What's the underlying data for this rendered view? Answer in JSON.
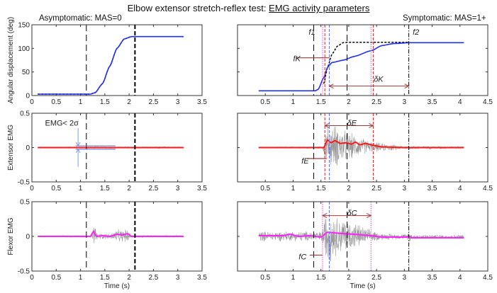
{
  "figure": {
    "title_plain": "Elbow extensor stretch-reflex test: ",
    "title_underlined": "EMG activity parameters",
    "left_subtitle": "Asymptomatic: MAS=0",
    "right_subtitle": "Symptomatic: MAS=1+"
  },
  "chart_data": [
    {
      "id": "left-displacement",
      "type": "line",
      "ylabel": "Angular displacement (deg)",
      "xlabel": "",
      "xlim": [
        0,
        3.5
      ],
      "ylim": [
        0,
        150
      ],
      "xticks": [
        "0",
        "0.5",
        "1",
        "1.5",
        "2",
        "2.5",
        "3",
        "3.5"
      ],
      "yticks": [
        "0",
        "50",
        "100",
        "150"
      ],
      "series": [
        {
          "color": "#000000",
          "style": "dashed",
          "points": [
            [
              0.12,
              3
            ],
            [
              1.2,
              3
            ],
            [
              1.3,
              6
            ],
            [
              1.45,
              25
            ],
            [
              1.6,
              62
            ],
            [
              1.75,
              100
            ],
            [
              1.9,
              120
            ],
            [
              2.05,
              125
            ],
            [
              3.12,
              125
            ]
          ]
        },
        {
          "color": "#1f2ff5",
          "style": "solid",
          "points": [
            [
              0.12,
              3
            ],
            [
              1.2,
              3
            ],
            [
              1.3,
              6
            ],
            [
              1.45,
              25
            ],
            [
              1.6,
              62
            ],
            [
              1.75,
              100
            ],
            [
              1.9,
              120
            ],
            [
              2.05,
              125
            ],
            [
              3.12,
              125
            ]
          ]
        }
      ],
      "vlines": [
        {
          "x": 1.12,
          "color": "#000000",
          "style": "longdash"
        },
        {
          "x": 2.12,
          "color": "#000000",
          "style": "thickdash"
        }
      ],
      "annotations": []
    },
    {
      "id": "right-displacement",
      "type": "line",
      "ylabel": "",
      "xlabel": "",
      "xlim": [
        0,
        4.5
      ],
      "ylim": [
        0,
        150
      ],
      "xticks": [
        "0.5",
        "1",
        "1.5",
        "2",
        "2.5",
        "3",
        "3.5",
        "4",
        "4.5"
      ],
      "yticks": [],
      "series": [
        {
          "color": "#000000",
          "style": "dashed",
          "points": [
            [
              1.55,
              25
            ],
            [
              1.62,
              60
            ],
            [
              1.7,
              88
            ],
            [
              1.8,
              105
            ],
            [
              1.9,
              112
            ],
            [
              2.0,
              113
            ],
            [
              3.08,
              113
            ]
          ]
        },
        {
          "color": "#1f2ff5",
          "style": "solid",
          "points": [
            [
              0.38,
              10
            ],
            [
              1.4,
              10
            ],
            [
              1.45,
              13
            ],
            [
              1.55,
              38
            ],
            [
              1.62,
              60
            ],
            [
              1.7,
              70
            ],
            [
              1.9,
              75
            ],
            [
              2.1,
              83
            ],
            [
              2.4,
              95
            ],
            [
              2.6,
              106
            ],
            [
              2.8,
              110
            ],
            [
              3.1,
              112
            ],
            [
              4.07,
              112
            ]
          ]
        }
      ],
      "vlines": [
        {
          "x": 1.37,
          "color": "#000000",
          "style": "longdash"
        },
        {
          "x": 1.53,
          "color": "#ff33ff",
          "style": "dotted"
        },
        {
          "x": 1.57,
          "color": "#e02020",
          "style": "dashed"
        },
        {
          "x": 1.65,
          "color": "#5a6cff",
          "style": "dashed"
        },
        {
          "x": 1.97,
          "color": "#000000",
          "style": "longdash"
        },
        {
          "x": 2.4,
          "color": "#ff33ff",
          "style": "dotted"
        },
        {
          "x": 2.44,
          "color": "#e02020",
          "style": "dashed"
        },
        {
          "x": 3.08,
          "color": "#000000",
          "style": "dashdot"
        }
      ],
      "annotations": [
        {
          "text": "f1",
          "x": 1.28,
          "y": 135
        },
        {
          "text": "f2",
          "x": 3.15,
          "y": 135
        },
        {
          "text": "fK",
          "x": 1.0,
          "y": 79,
          "line": [
            1.05,
            1.65,
            80
          ]
        },
        {
          "text": "δK",
          "x": 2.45,
          "y": 35,
          "arrow": [
            1.65,
            3.08,
            20
          ]
        }
      ]
    },
    {
      "id": "left-extensor",
      "type": "line",
      "ylabel": "Extensor EMG",
      "xlabel": "",
      "xlim": [
        0,
        3.5
      ],
      "ylim": [
        -0.5,
        0.5
      ],
      "xticks": [
        "0",
        "0.5",
        "1",
        "1.5",
        "2",
        "2.5",
        "3",
        "3.5"
      ],
      "yticks": [
        "-0.5",
        "0",
        "0.5"
      ],
      "raw": {
        "color": "#999999",
        "range": [
          0.12,
          3.12
        ],
        "amplitude": [
          [
            0.12,
            0.01
          ],
          [
            3.12,
            0.015
          ]
        ]
      },
      "series": [
        {
          "color": "#ff1a1a",
          "style": "thick",
          "points": [
            [
              0.12,
              0
            ],
            [
              3.12,
              0
            ]
          ]
        }
      ],
      "vlines": [
        {
          "x": 1.12,
          "color": "#000000",
          "style": "longdash"
        },
        {
          "x": 2.12,
          "color": "#000000",
          "style": "thickdash"
        }
      ],
      "annotations": [
        {
          "text": "EMG< 2σ",
          "x": 0.27,
          "y": 0.36,
          "threshold": [
            0.9,
            1.72,
            0.025
          ],
          "arrows_x": 0.95
        }
      ]
    },
    {
      "id": "right-extensor",
      "type": "line",
      "ylabel": "",
      "xlabel": "",
      "xlim": [
        0,
        4.5
      ],
      "ylim": [
        -0.5,
        0.5
      ],
      "xticks": [
        "0.5",
        "1",
        "1.5",
        "2",
        "2.5",
        "3",
        "3.5",
        "4",
        "4.5"
      ],
      "yticks": [],
      "raw": {
        "color": "#999999",
        "range": [
          0.38,
          4.07
        ],
        "amplitude": [
          [
            0.38,
            0.012
          ],
          [
            1.52,
            0.015
          ],
          [
            1.6,
            0.3
          ],
          [
            1.75,
            0.35
          ],
          [
            1.95,
            0.25
          ],
          [
            2.2,
            0.15
          ],
          [
            2.45,
            0.08
          ],
          [
            3.0,
            0.03
          ],
          [
            4.07,
            0.02
          ]
        ]
      },
      "series": [
        {
          "color": "#ff1a1a",
          "style": "thick",
          "points": [
            [
              0.38,
              0
            ],
            [
              1.55,
              0
            ],
            [
              1.62,
              0.11
            ],
            [
              1.68,
              0.07
            ],
            [
              1.75,
              0.1
            ],
            [
              1.85,
              0.06
            ],
            [
              1.95,
              0.07
            ],
            [
              2.05,
              0.05
            ],
            [
              2.12,
              0.08
            ],
            [
              2.2,
              0.04
            ],
            [
              2.3,
              0.06
            ],
            [
              2.45,
              0.03
            ],
            [
              2.6,
              0.01
            ],
            [
              3.0,
              0.0
            ],
            [
              4.07,
              0.0
            ]
          ]
        }
      ],
      "vlines": [
        {
          "x": 1.37,
          "color": "#000000",
          "style": "longdash"
        },
        {
          "x": 1.57,
          "color": "#e02020",
          "style": "dashed"
        },
        {
          "x": 1.65,
          "color": "#5a6cff",
          "style": "dashed"
        },
        {
          "x": 1.97,
          "color": "#000000",
          "style": "longdash"
        },
        {
          "x": 2.44,
          "color": "#e02020",
          "style": "dashed"
        },
        {
          "x": 3.08,
          "color": "#000000",
          "style": "dashdot"
        }
      ],
      "annotations": [
        {
          "text": "δE",
          "x": 1.97,
          "y": 0.36,
          "arrow": [
            1.57,
            2.44,
            0.32
          ]
        },
        {
          "text": "fE",
          "x": 1.15,
          "y": -0.19,
          "line": [
            1.25,
            1.6,
            -0.16
          ]
        }
      ]
    },
    {
      "id": "left-flexor",
      "type": "line",
      "ylabel": "Flexor EMG",
      "xlabel": "Time (s)",
      "xlim": [
        0,
        3.5
      ],
      "ylim": [
        -0.5,
        0.5
      ],
      "xticks": [
        "0",
        "0.5",
        "1",
        "1.5",
        "2",
        "2.5",
        "3",
        "3.5"
      ],
      "yticks": [
        "-0.5",
        "0",
        "0.5"
      ],
      "raw": {
        "color": "#999999",
        "range": [
          0.12,
          3.12
        ],
        "amplitude": [
          [
            0.12,
            0.012
          ],
          [
            1.22,
            0.015
          ],
          [
            1.27,
            0.18
          ],
          [
            1.35,
            0.05
          ],
          [
            1.6,
            0.04
          ],
          [
            1.75,
            0.1
          ],
          [
            1.97,
            0.1
          ],
          [
            2.05,
            0.02
          ],
          [
            3.12,
            0.015
          ]
        ]
      },
      "series": [
        {
          "color": "#ff22ff",
          "style": "thick",
          "points": [
            [
              0.12,
              0
            ],
            [
              1.2,
              0
            ],
            [
              1.27,
              0.07
            ],
            [
              1.33,
              0.0
            ],
            [
              1.45,
              0.01
            ],
            [
              1.6,
              0.0
            ],
            [
              1.75,
              0.03
            ],
            [
              1.85,
              0.02
            ],
            [
              1.97,
              0.04
            ],
            [
              2.05,
              0.0
            ],
            [
              3.12,
              0.0
            ]
          ]
        }
      ],
      "vlines": [
        {
          "x": 1.12,
          "color": "#000000",
          "style": "longdash"
        },
        {
          "x": 2.12,
          "color": "#000000",
          "style": "thickdash"
        }
      ],
      "annotations": []
    },
    {
      "id": "right-flexor",
      "type": "line",
      "ylabel": "",
      "xlabel": "Time (s)",
      "xlim": [
        0,
        4.5
      ],
      "ylim": [
        -0.5,
        0.5
      ],
      "xticks": [
        "0.5",
        "1",
        "1.5",
        "2",
        "2.5",
        "3",
        "3.5",
        "4",
        "4.5"
      ],
      "yticks": [],
      "raw": {
        "color": "#999999",
        "range": [
          0.38,
          4.07
        ],
        "amplitude": [
          [
            0.38,
            0.08
          ],
          [
            1.5,
            0.08
          ],
          [
            1.62,
            0.45
          ],
          [
            1.8,
            0.3
          ],
          [
            2.0,
            0.25
          ],
          [
            2.4,
            0.1
          ],
          [
            2.6,
            0.05
          ],
          [
            3.05,
            0.04
          ],
          [
            3.08,
            0.12
          ],
          [
            3.15,
            0.03
          ],
          [
            4.07,
            0.03
          ]
        ]
      },
      "series": [
        {
          "color": "#ff22ff",
          "style": "thick",
          "points": [
            [
              0.38,
              0.01
            ],
            [
              0.8,
              0.01
            ],
            [
              0.95,
              0.03
            ],
            [
              1.1,
              0.0
            ],
            [
              1.3,
              0.01
            ],
            [
              1.5,
              -0.01
            ],
            [
              1.62,
              0.06
            ],
            [
              1.75,
              0.05
            ],
            [
              1.9,
              0.04
            ],
            [
              2.1,
              0.03
            ],
            [
              2.4,
              0.01
            ],
            [
              2.6,
              -0.01
            ],
            [
              3.05,
              -0.01
            ],
            [
              3.08,
              0.01
            ],
            [
              3.12,
              -0.02
            ],
            [
              4.07,
              -0.02
            ]
          ]
        }
      ],
      "vlines": [
        {
          "x": 1.37,
          "color": "#000000",
          "style": "longdash"
        },
        {
          "x": 1.53,
          "color": "#ff33ff",
          "style": "dotted"
        },
        {
          "x": 1.65,
          "color": "#5a6cff",
          "style": "dashed"
        },
        {
          "x": 1.97,
          "color": "#000000",
          "style": "longdash"
        },
        {
          "x": 2.4,
          "color": "#ff33ff",
          "style": "dotted"
        },
        {
          "x": 3.08,
          "color": "#000000",
          "style": "dashdot"
        }
      ],
      "annotations": [
        {
          "text": "δC",
          "x": 1.97,
          "y": 0.34,
          "arrow": [
            1.53,
            2.4,
            0.3
          ]
        },
        {
          "text": "fC",
          "x": 1.1,
          "y": -0.29,
          "line": [
            1.3,
            1.53,
            -0.27
          ]
        }
      ]
    }
  ]
}
